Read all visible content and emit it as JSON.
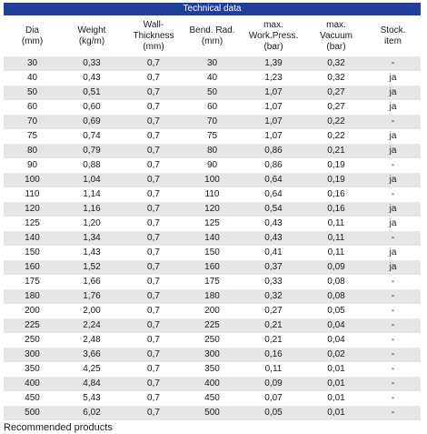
{
  "title": "Technical data",
  "headers": [
    "Dia\n(mm)",
    "Weight\n(kg/m)",
    "Wall-\nThickness\n(mm)",
    "Bend. Rad.\n(mm)",
    "max.\nWork.Press.\n(bar)",
    "max.\nVacuum\n(bar)",
    "Stock.\nitem"
  ],
  "rows": [
    [
      "30",
      "0,33",
      "0,7",
      "30",
      "1,39",
      "0,32",
      "-"
    ],
    [
      "40",
      "0,43",
      "0,7",
      "40",
      "1,23",
      "0,32",
      "ja"
    ],
    [
      "50",
      "0,51",
      "0,7",
      "50",
      "1,07",
      "0,27",
      "ja"
    ],
    [
      "60",
      "0,60",
      "0,7",
      "60",
      "1,07",
      "0,27",
      "ja"
    ],
    [
      "70",
      "0,69",
      "0,7",
      "70",
      "1,07",
      "0,22",
      "-"
    ],
    [
      "75",
      "0,74",
      "0,7",
      "75",
      "1,07",
      "0,22",
      "ja"
    ],
    [
      "80",
      "0,79",
      "0,7",
      "80",
      "0,86",
      "0,21",
      "ja"
    ],
    [
      "90",
      "0,88",
      "0,7",
      "90",
      "0,86",
      "0,19",
      "-"
    ],
    [
      "100",
      "1,04",
      "0,7",
      "100",
      "0,64",
      "0,19",
      "ja"
    ],
    [
      "110",
      "1,14",
      "0,7",
      "110",
      "0,64",
      "0,16",
      "-"
    ],
    [
      "120",
      "1,16",
      "0,7",
      "120",
      "0,54",
      "0,16",
      "ja"
    ],
    [
      "125",
      "1,20",
      "0,7",
      "125",
      "0,43",
      "0,11",
      "ja"
    ],
    [
      "140",
      "1,34",
      "0,7",
      "140",
      "0,43",
      "0,11",
      "-"
    ],
    [
      "150",
      "1,43",
      "0,7",
      "150",
      "0,41",
      "0,11",
      "ja"
    ],
    [
      "160",
      "1,52",
      "0,7",
      "160",
      "0,37",
      "0,09",
      "ja"
    ],
    [
      "175",
      "1,66",
      "0,7",
      "175",
      "0,33",
      "0,08",
      "-"
    ],
    [
      "180",
      "1,76",
      "0,7",
      "180",
      "0,32",
      "0,08",
      "-"
    ],
    [
      "200",
      "2,00",
      "0,7",
      "200",
      "0,27",
      "0,05",
      "-"
    ],
    [
      "225",
      "2,24",
      "0,7",
      "225",
      "0,21",
      "0,04",
      "-"
    ],
    [
      "250",
      "2,48",
      "0,7",
      "250",
      "0,21",
      "0,04",
      "-"
    ],
    [
      "300",
      "3,66",
      "0,7",
      "300",
      "0,16",
      "0,02",
      "-"
    ],
    [
      "350",
      "4,25",
      "0,7",
      "350",
      "0,11",
      "0,01",
      "-"
    ],
    [
      "400",
      "4,84",
      "0,7",
      "400",
      "0,09",
      "0,01",
      "-"
    ],
    [
      "450",
      "5,43",
      "0,7",
      "450",
      "0,07",
      "0,01",
      "-"
    ],
    [
      "500",
      "6,02",
      "0,7",
      "500",
      "0,05",
      "0,01",
      "-"
    ]
  ],
  "footer_text": "Recommended products",
  "colors": {
    "title_bar": "#1f3f9a",
    "row_alt": "#e6e6e6",
    "row_plain": "#ffffff"
  }
}
